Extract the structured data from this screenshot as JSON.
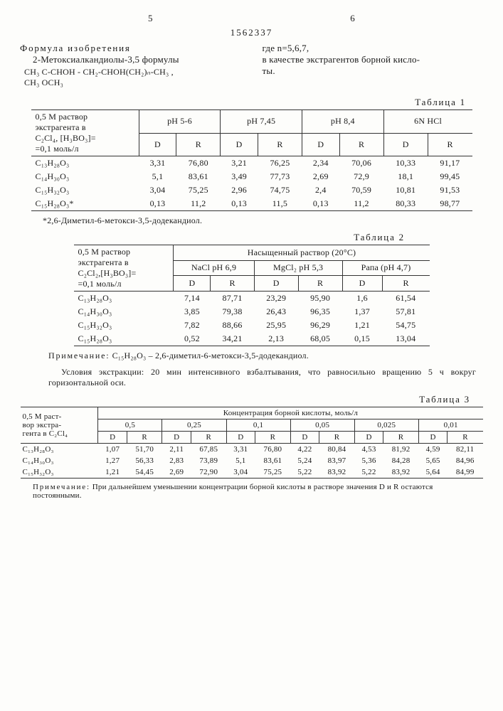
{
  "page_left": "5",
  "page_right": "6",
  "doc_id": "1562337",
  "left_col": {
    "title": "Формула изобретения",
    "line1": "2-Метоксиалкандиолы-3,5 формулы",
    "formula_l1": "CH₃ C-CHOH - CH₂-CHOH(CH₂)ₙ-CH₃ ,",
    "formula_l2": "CH₃ OCH₃"
  },
  "right_col": {
    "line1": "где n=5,6,7,",
    "line2": "в качестве экстрагентов борной кисло-",
    "line3": "ты."
  },
  "table1": {
    "caption": "Таблица 1",
    "left_header_l1": "0,5 М раствор",
    "left_header_l2": "экстрагента в",
    "left_header_l3": "C₂Cl₄, [H₃BO₃]=",
    "left_header_l4": "=0,1 моль/л",
    "groups": [
      "pH 5-6",
      "pH 7,45",
      "pH 8,4",
      "6N HCl"
    ],
    "sub": [
      "D",
      "R"
    ],
    "rows": [
      {
        "c": "C₁₃H₂₈O₃",
        "v": [
          "3,31",
          "76,80",
          "3,21",
          "76,25",
          "2,34",
          "70,06",
          "10,33",
          "91,17"
        ]
      },
      {
        "c": "C₁₄H₃₀O₃",
        "v": [
          "5,1",
          "83,61",
          "3,49",
          "77,73",
          "2,69",
          "72,9",
          "18,1",
          "99,45"
        ]
      },
      {
        "c": "C₁₅H₃₂O₃",
        "v": [
          "3,04",
          "75,25",
          "2,96",
          "74,75",
          "2,4",
          "70,59",
          "10,81",
          "91,53"
        ]
      },
      {
        "c": "C₁₅H₂₈O₃*",
        "v": [
          "0,13",
          "11,2",
          "0,13",
          "11,5",
          "0,13",
          "11,2",
          "80,33",
          "98,77"
        ]
      }
    ],
    "footnote": "*2,6-Диметил-6-метокси-3,5-додекандиол."
  },
  "table2": {
    "caption": "Таблица 2",
    "left_header_l1": "0,5 М раствор",
    "left_header_l2": "экстрагента в",
    "left_header_l3": "C₂Cl₂,[H₃BO₃]=",
    "left_header_l4": "=0,1 моль/л",
    "top_header": "Насыщенный раствор (20°С)",
    "groups": [
      "NaCl pH 6,9",
      "MgCl₂ pH 5,3",
      "Рапа (pH 4,7)"
    ],
    "sub": [
      "D",
      "R"
    ],
    "rows": [
      {
        "c": "C₁₃H₂₈O₃",
        "v": [
          "7,14",
          "87,71",
          "23,29",
          "95,90",
          "1,6",
          "61,54"
        ]
      },
      {
        "c": "C₁₄H₃₀O₃",
        "v": [
          "3,85",
          "79,38",
          "26,43",
          "96,35",
          "1,37",
          "57,81"
        ]
      },
      {
        "c": "C₁₅H₃₂O₃",
        "v": [
          "7,82",
          "88,66",
          "25,95",
          "96,29",
          "1,21",
          "54,75"
        ]
      },
      {
        "c": "C₁₅H₂₈O₃",
        "v": [
          "0,52",
          "34,21",
          "2,13",
          "68,05",
          "0,15",
          "13,04"
        ]
      }
    ],
    "note1_label": "Примечание:",
    "note1": " C₁₅H₂₈O₃ – 2,6-диметил-6-метокси-3,5-додекандиол.",
    "note2": "Условия экстракции: 20 мин интенсивного взбалтывания, что равносильно вращению 5 ч вокруг горизонтальной оси."
  },
  "table3": {
    "caption": "Таблица 3",
    "left_header_l1": "0,5 М раст-",
    "left_header_l2": "вор экстра-",
    "left_header_l3": "гента в C₂Cl₄",
    "top_header": "Концентрация борной кислоты, моль/л",
    "groups": [
      "0,5",
      "0,25",
      "0,1",
      "0,05",
      "0,025",
      "0,01"
    ],
    "sub": [
      "D",
      "R"
    ],
    "rows": [
      {
        "c": "C₁₃H₂₈O₃",
        "v": [
          "1,07",
          "51,70",
          "2,11",
          "67,85",
          "3,31",
          "76,80",
          "4,22",
          "80,84",
          "4,53",
          "81,92",
          "4,59",
          "82,11"
        ]
      },
      {
        "c": "C₁₄H₃₀O₃",
        "v": [
          "1,27",
          "56,33",
          "2,83",
          "73,89",
          "5,1",
          "83,61",
          "5,24",
          "83,97",
          "5,36",
          "84,28",
          "5,65",
          "84,96"
        ]
      },
      {
        "c": "C₁₅H₃₂O₃",
        "v": [
          "1,21",
          "54,45",
          "2,69",
          "72,90",
          "3,04",
          "75,25",
          "5,22",
          "83,92",
          "5,22",
          "83,92",
          "5,64",
          "84,99"
        ]
      }
    ],
    "note_label": "Примечание:",
    "note": " При дальнейшем уменьшении концентрации борной кислоты в растворе значения D и R остаются постоянными."
  }
}
